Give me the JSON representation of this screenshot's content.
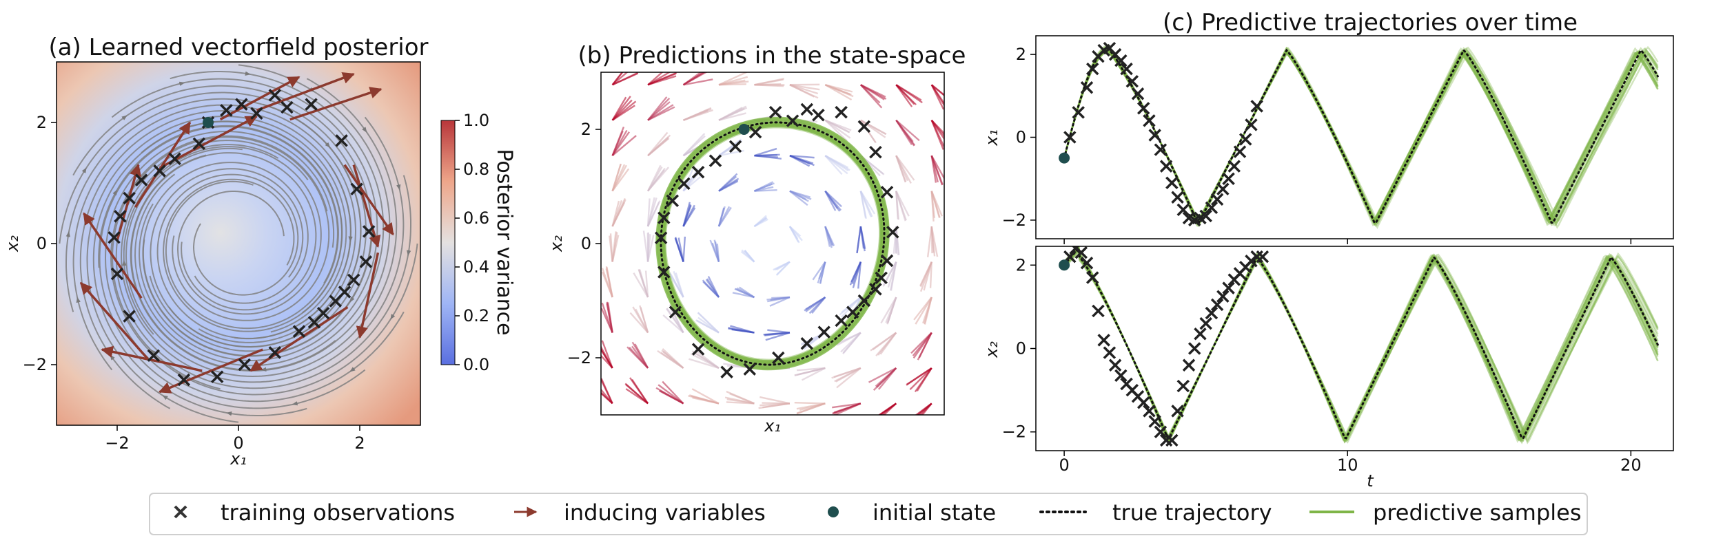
{
  "colors": {
    "observation": "#222222",
    "inducing": "#8c3a2e",
    "initial": "#1f4e4e",
    "true_traj": "#111111",
    "samples": "#7fb548",
    "stream": "#808080",
    "cold": "#3b4cc0",
    "neutral": "#dddddd",
    "warm": "#b40426"
  },
  "chart_data": [
    {
      "id": "a",
      "type": "heatmap",
      "title": "(a) Learned vectorfield posterior",
      "xlabel": "x₁",
      "ylabel": "x₂",
      "xlim": [
        -3,
        3
      ],
      "ylim": [
        -3,
        3
      ],
      "xticks": [
        -2,
        0,
        2
      ],
      "yticks": [
        -2,
        0,
        2
      ],
      "xtick_labels": [
        "−2",
        "0",
        "2"
      ],
      "ytick_labels": [
        "−2",
        "0",
        "2"
      ],
      "colorbar": {
        "label": "Posterior variance",
        "range": [
          0.0,
          1.0
        ],
        "ticks": [
          0.0,
          0.2,
          0.4,
          0.6,
          0.8,
          1.0
        ],
        "tick_labels": [
          "0.0",
          "0.2",
          "0.4",
          "0.6",
          "0.8",
          "1.0"
        ]
      },
      "observations": [
        [
          -0.5,
          2.0
        ],
        [
          -0.2,
          2.2
        ],
        [
          0.05,
          2.3
        ],
        [
          0.3,
          2.15
        ],
        [
          0.6,
          2.45
        ],
        [
          0.8,
          2.25
        ],
        [
          1.2,
          2.3
        ],
        [
          1.7,
          1.7
        ],
        [
          1.95,
          0.9
        ],
        [
          2.15,
          0.2
        ],
        [
          2.1,
          -0.3
        ],
        [
          1.9,
          -0.6
        ],
        [
          1.75,
          -0.8
        ],
        [
          1.6,
          -0.95
        ],
        [
          1.4,
          -1.15
        ],
        [
          1.25,
          -1.3
        ],
        [
          1.0,
          -1.45
        ],
        [
          0.6,
          -1.8
        ],
        [
          0.1,
          -2.0
        ],
        [
          -0.35,
          -2.2
        ],
        [
          -0.9,
          -2.25
        ],
        [
          -1.4,
          -1.85
        ],
        [
          -1.8,
          -1.2
        ],
        [
          -2.0,
          -0.5
        ],
        [
          -2.05,
          0.1
        ],
        [
          -1.95,
          0.45
        ],
        [
          -1.8,
          0.75
        ],
        [
          -1.6,
          1.05
        ],
        [
          -1.3,
          1.2
        ],
        [
          -1.05,
          1.4
        ],
        [
          -0.65,
          1.65
        ]
      ],
      "initial_state": [
        -0.5,
        2.0
      ],
      "inducing_variables": [
        {
          "from": [
            -0.3,
            2.05
          ],
          "to": [
            1.0,
            2.75
          ]
        },
        {
          "from": [
            0.3,
            2.2
          ],
          "to": [
            1.9,
            2.8
          ]
        },
        {
          "from": [
            0.85,
            2.05
          ],
          "to": [
            2.35,
            2.55
          ]
        },
        {
          "from": [
            1.75,
            1.3
          ],
          "to": [
            2.55,
            0.15
          ]
        },
        {
          "from": [
            2.3,
            -0.15
          ],
          "to": [
            2.0,
            -1.55
          ]
        },
        {
          "from": [
            1.9,
            1.3
          ],
          "to": [
            2.3,
            -0.05
          ]
        },
        {
          "from": [
            1.8,
            -1.05
          ],
          "to": [
            0.2,
            -2.1
          ]
        },
        {
          "from": [
            0.4,
            -1.75
          ],
          "to": [
            -1.3,
            -2.45
          ]
        },
        {
          "from": [
            -0.6,
            -2.1
          ],
          "to": [
            -2.25,
            -1.75
          ]
        },
        {
          "from": [
            -1.5,
            -1.9
          ],
          "to": [
            -2.6,
            -0.65
          ]
        },
        {
          "from": [
            -1.6,
            -0.9
          ],
          "to": [
            -2.55,
            0.5
          ]
        },
        {
          "from": [
            -2.0,
            0.05
          ],
          "to": [
            -1.65,
            1.3
          ]
        },
        {
          "from": [
            -1.7,
            0.6
          ],
          "to": [
            -0.8,
            2.0
          ]
        },
        {
          "from": [
            -1.3,
            1.25
          ],
          "to": [
            0.3,
            2.1
          ]
        }
      ]
    },
    {
      "id": "b",
      "type": "scatter",
      "title": "(b) Predictions in the state-space",
      "xlabel": "x₁",
      "ylabel": "x₂",
      "xlim": [
        -3,
        3
      ],
      "ylim": [
        -3,
        3
      ],
      "yticks": [
        -2,
        0,
        2
      ],
      "ytick_labels": [
        "−2",
        "0",
        "2"
      ],
      "observations": [
        [
          0.05,
          2.3
        ],
        [
          0.35,
          2.15
        ],
        [
          0.6,
          2.35
        ],
        [
          0.8,
          2.25
        ],
        [
          1.2,
          2.3
        ],
        [
          1.6,
          2.05
        ],
        [
          1.8,
          1.6
        ],
        [
          2.0,
          0.9
        ],
        [
          2.1,
          0.2
        ],
        [
          2.0,
          -0.3
        ],
        [
          1.9,
          -0.6
        ],
        [
          1.8,
          -0.8
        ],
        [
          1.6,
          -1.0
        ],
        [
          1.4,
          -1.2
        ],
        [
          1.2,
          -1.35
        ],
        [
          0.9,
          -1.55
        ],
        [
          0.6,
          -1.75
        ],
        [
          0.1,
          -2.0
        ],
        [
          -0.4,
          -2.2
        ],
        [
          -0.8,
          -2.25
        ],
        [
          -1.3,
          -1.85
        ],
        [
          -1.7,
          -1.2
        ],
        [
          -1.9,
          -0.5
        ],
        [
          -1.95,
          0.1
        ],
        [
          -1.9,
          0.45
        ],
        [
          -1.75,
          0.75
        ],
        [
          -1.55,
          1.05
        ],
        [
          -1.3,
          1.25
        ],
        [
          -1.0,
          1.45
        ],
        [
          -0.65,
          1.7
        ],
        [
          -0.3,
          1.95
        ]
      ],
      "initial_state": [
        -0.5,
        2.0
      ]
    },
    {
      "id": "c",
      "type": "line",
      "title": "(c) Predictive trajectories over time",
      "xlabel": "t",
      "xlim": [
        -1,
        21.5
      ],
      "xticks": [
        0,
        10,
        20
      ],
      "xtick_labels": [
        "0",
        "10",
        "20"
      ],
      "obs_end": 7.0,
      "series": [
        {
          "ylabel": "x₁",
          "ylim": [
            -2.45,
            2.45
          ],
          "yticks": [
            -2,
            0,
            2
          ],
          "ytick_labels": [
            "−2",
            "0",
            "2"
          ],
          "initial": [
            0,
            -0.5
          ],
          "observations": [
            [
              0.2,
              0.0
            ],
            [
              0.5,
              0.6
            ],
            [
              0.8,
              1.2
            ],
            [
              1.0,
              1.65
            ],
            [
              1.2,
              1.95
            ],
            [
              1.4,
              2.1
            ],
            [
              1.6,
              2.15
            ],
            [
              1.8,
              2.0
            ],
            [
              2.0,
              1.85
            ],
            [
              2.2,
              1.65
            ],
            [
              2.4,
              1.35
            ],
            [
              2.6,
              1.05
            ],
            [
              2.8,
              0.7
            ],
            [
              3.0,
              0.4
            ],
            [
              3.2,
              0.05
            ],
            [
              3.4,
              -0.3
            ],
            [
              3.6,
              -0.7
            ],
            [
              3.8,
              -1.1
            ],
            [
              4.0,
              -1.45
            ],
            [
              4.2,
              -1.75
            ],
            [
              4.4,
              -1.95
            ],
            [
              4.6,
              -2.0
            ],
            [
              4.8,
              -1.95
            ],
            [
              5.0,
              -1.9
            ],
            [
              5.2,
              -1.7
            ],
            [
              5.4,
              -1.5
            ],
            [
              5.6,
              -1.25
            ],
            [
              5.8,
              -1.0
            ],
            [
              6.0,
              -0.7
            ],
            [
              6.2,
              -0.35
            ],
            [
              6.4,
              -0.05
            ],
            [
              6.6,
              0.3
            ],
            [
              6.8,
              0.75
            ]
          ]
        },
        {
          "ylabel": "x₂",
          "ylim": [
            -2.45,
            2.45
          ],
          "yticks": [
            -2,
            0,
            2
          ],
          "ytick_labels": [
            "−2",
            "0",
            "2"
          ],
          "initial": [
            0,
            2.0
          ],
          "observations": [
            [
              0.2,
              2.2
            ],
            [
              0.4,
              2.4
            ],
            [
              0.6,
              2.3
            ],
            [
              0.8,
              2.05
            ],
            [
              1.0,
              1.7
            ],
            [
              1.2,
              0.9
            ],
            [
              1.4,
              0.2
            ],
            [
              1.6,
              -0.1
            ],
            [
              1.8,
              -0.4
            ],
            [
              2.0,
              -0.65
            ],
            [
              2.2,
              -0.85
            ],
            [
              2.4,
              -1.0
            ],
            [
              2.6,
              -1.15
            ],
            [
              2.8,
              -1.3
            ],
            [
              3.0,
              -1.5
            ],
            [
              3.2,
              -1.75
            ],
            [
              3.4,
              -2.0
            ],
            [
              3.6,
              -2.2
            ],
            [
              3.8,
              -2.2
            ],
            [
              4.0,
              -1.5
            ],
            [
              4.2,
              -0.9
            ],
            [
              4.4,
              -0.4
            ],
            [
              4.6,
              0.0
            ],
            [
              4.8,
              0.35
            ],
            [
              5.0,
              0.6
            ],
            [
              5.2,
              0.85
            ],
            [
              5.4,
              1.05
            ],
            [
              5.6,
              1.25
            ],
            [
              5.8,
              1.45
            ],
            [
              6.0,
              1.65
            ],
            [
              6.2,
              1.8
            ],
            [
              6.4,
              1.95
            ],
            [
              6.6,
              2.1
            ],
            [
              6.8,
              2.2
            ],
            [
              7.0,
              2.2
            ]
          ]
        }
      ]
    }
  ],
  "legend": {
    "items": [
      {
        "key": "observation",
        "label": "training observations"
      },
      {
        "key": "inducing",
        "label": "inducing variables"
      },
      {
        "key": "initial",
        "label": "initial state"
      },
      {
        "key": "true_traj",
        "label": "true trajectory"
      },
      {
        "key": "samples",
        "label": "predictive samples"
      }
    ]
  }
}
